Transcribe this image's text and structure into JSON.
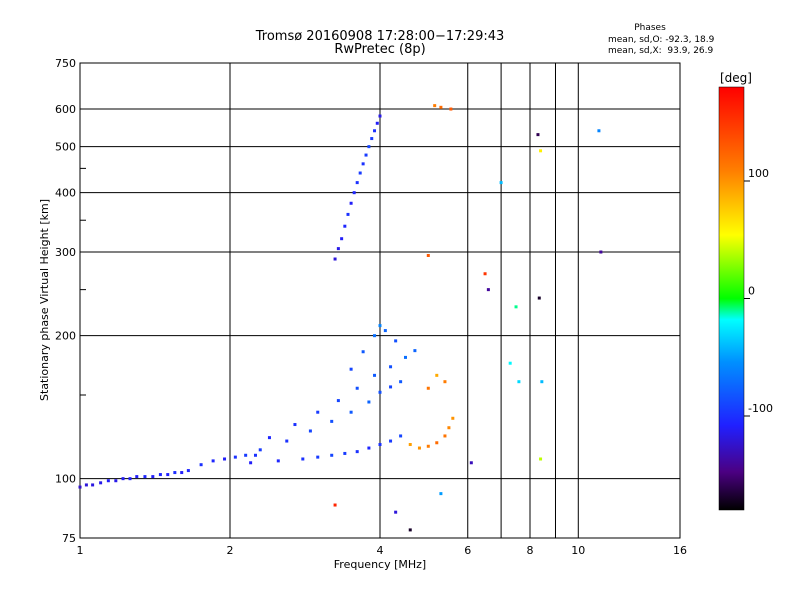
{
  "chart_data": {
    "type": "scatter",
    "title": "Tromsø 20160908 17:28:00−17:29:43",
    "subtitle": "RwPretec (8p)",
    "xlabel": "Frequency [MHz]",
    "ylabel": "Stationary phase Virtual Height [km]",
    "x_scale": "log",
    "y_scale": "log",
    "xlim": [
      1,
      16
    ],
    "ylim": [
      75,
      750
    ],
    "x_ticks": [
      1,
      2,
      4,
      6,
      8,
      10,
      16
    ],
    "y_ticks": [
      75,
      100,
      200,
      300,
      400,
      500,
      600,
      750
    ],
    "grid": true,
    "phase_box": {
      "title": "Phases",
      "line1": "mean, sd,O: -92.3, 18.9",
      "line2": "mean, sd,X:  93.9, 26.9"
    },
    "colorbar": {
      "label": "[deg]",
      "ticks": [
        100,
        0,
        -100
      ],
      "range": [
        -180,
        180
      ]
    },
    "series": [
      {
        "trace": "low-layer-trace",
        "x": [
          1.0,
          1.03,
          1.06,
          1.1,
          1.14,
          1.18,
          1.22,
          1.26,
          1.3,
          1.35,
          1.4,
          1.45,
          1.5,
          1.55,
          1.6,
          1.65,
          1.75,
          1.85,
          1.95,
          2.05,
          2.15,
          2.25
        ],
        "y": [
          96,
          97,
          97,
          98,
          99,
          99,
          100,
          100,
          101,
          101,
          101,
          102,
          102,
          103,
          103,
          104,
          107,
          109,
          110,
          111,
          112,
          112
        ],
        "phase": [
          -125,
          -120,
          -118,
          -115,
          -110,
          -115,
          -112,
          -108,
          -110,
          -105,
          -110,
          -105,
          -108,
          -102,
          -110,
          -105,
          -100,
          -105,
          -110,
          -100,
          -95,
          -100
        ]
      },
      {
        "trace": "e-layer-trace",
        "x": [
          2.2,
          2.5,
          2.8,
          3.0,
          3.2,
          3.4,
          3.6,
          3.8,
          4.0,
          4.2,
          4.4
        ],
        "y": [
          108,
          109,
          110,
          111,
          112,
          113,
          114,
          116,
          118,
          120,
          123
        ],
        "phase": [
          -110,
          -105,
          -100,
          -95,
          -90,
          -95,
          -100,
          -105,
          -100,
          -95,
          -90
        ]
      },
      {
        "trace": "f1-o-trace",
        "x": [
          2.3,
          2.6,
          2.9,
          3.2,
          3.5,
          3.8,
          4.0,
          4.2,
          4.4
        ],
        "y": [
          115,
          120,
          126,
          132,
          138,
          145,
          152,
          156,
          160
        ],
        "phase": [
          -95,
          -100,
          -90,
          -85,
          -80,
          -75,
          -85,
          -90,
          -80
        ]
      },
      {
        "trace": "f1-x-trace",
        "x": [
          2.4,
          2.7,
          3.0,
          3.3,
          3.6,
          3.9,
          4.2,
          4.5,
          4.7
        ],
        "y": [
          122,
          130,
          138,
          146,
          155,
          165,
          172,
          180,
          186
        ],
        "phase": [
          -105,
          -100,
          -95,
          -90,
          -85,
          -80,
          -85,
          -70,
          -75
        ]
      },
      {
        "trace": "f1-cusp-trace",
        "x": [
          3.5,
          3.7,
          3.9,
          4.0,
          4.1,
          4.3
        ],
        "y": [
          170,
          185,
          200,
          210,
          205,
          195
        ],
        "phase": [
          -90,
          -80,
          -70,
          -60,
          -75,
          -85
        ]
      },
      {
        "trace": "f2-trace",
        "x": [
          3.25,
          3.3,
          3.35,
          3.4,
          3.45,
          3.5,
          3.55,
          3.6,
          3.65,
          3.7,
          3.75,
          3.8,
          3.85,
          3.9,
          3.95,
          4.0
        ],
        "y": [
          290,
          305,
          320,
          340,
          360,
          380,
          400,
          420,
          440,
          460,
          480,
          500,
          520,
          540,
          560,
          580
        ],
        "phase": [
          -120,
          -115,
          -110,
          -105,
          -100,
          -110,
          -105,
          -100,
          -95,
          -100,
          -95,
          -90,
          -95,
          -100,
          -110,
          -115
        ]
      },
      {
        "trace": "x-mode-trace",
        "x": [
          4.6,
          4.8,
          5.0,
          5.2,
          5.4,
          5.5,
          5.6,
          5.4,
          5.2,
          5.0
        ],
        "y": [
          118,
          116,
          117,
          119,
          123,
          128,
          134,
          160,
          165,
          155
        ],
        "phase": [
          95,
          100,
          110,
          120,
          115,
          105,
          100,
          110,
          90,
          115
        ]
      },
      {
        "trace": "scatter-points",
        "x": [
          3.25,
          5.15,
          5.3,
          5.55,
          6.5,
          6.6,
          7.0,
          7.5,
          7.6,
          8.3,
          8.4,
          8.35,
          8.45,
          8.4,
          11.0,
          11.1,
          5.0,
          4.3,
          5.3,
          7.3,
          6.1,
          4.6
        ],
        "y": [
          88,
          610,
          605,
          600,
          270,
          250,
          420,
          230,
          160,
          530,
          490,
          240,
          160,
          110,
          540,
          300,
          295,
          85,
          93,
          175,
          108,
          78
        ],
        "phase": [
          160,
          110,
          120,
          130,
          150,
          -140,
          -40,
          -10,
          -30,
          -160,
          60,
          -170,
          -40,
          40,
          -60,
          -140,
          130,
          -120,
          -50,
          -20,
          -130,
          -170
        ]
      }
    ]
  }
}
